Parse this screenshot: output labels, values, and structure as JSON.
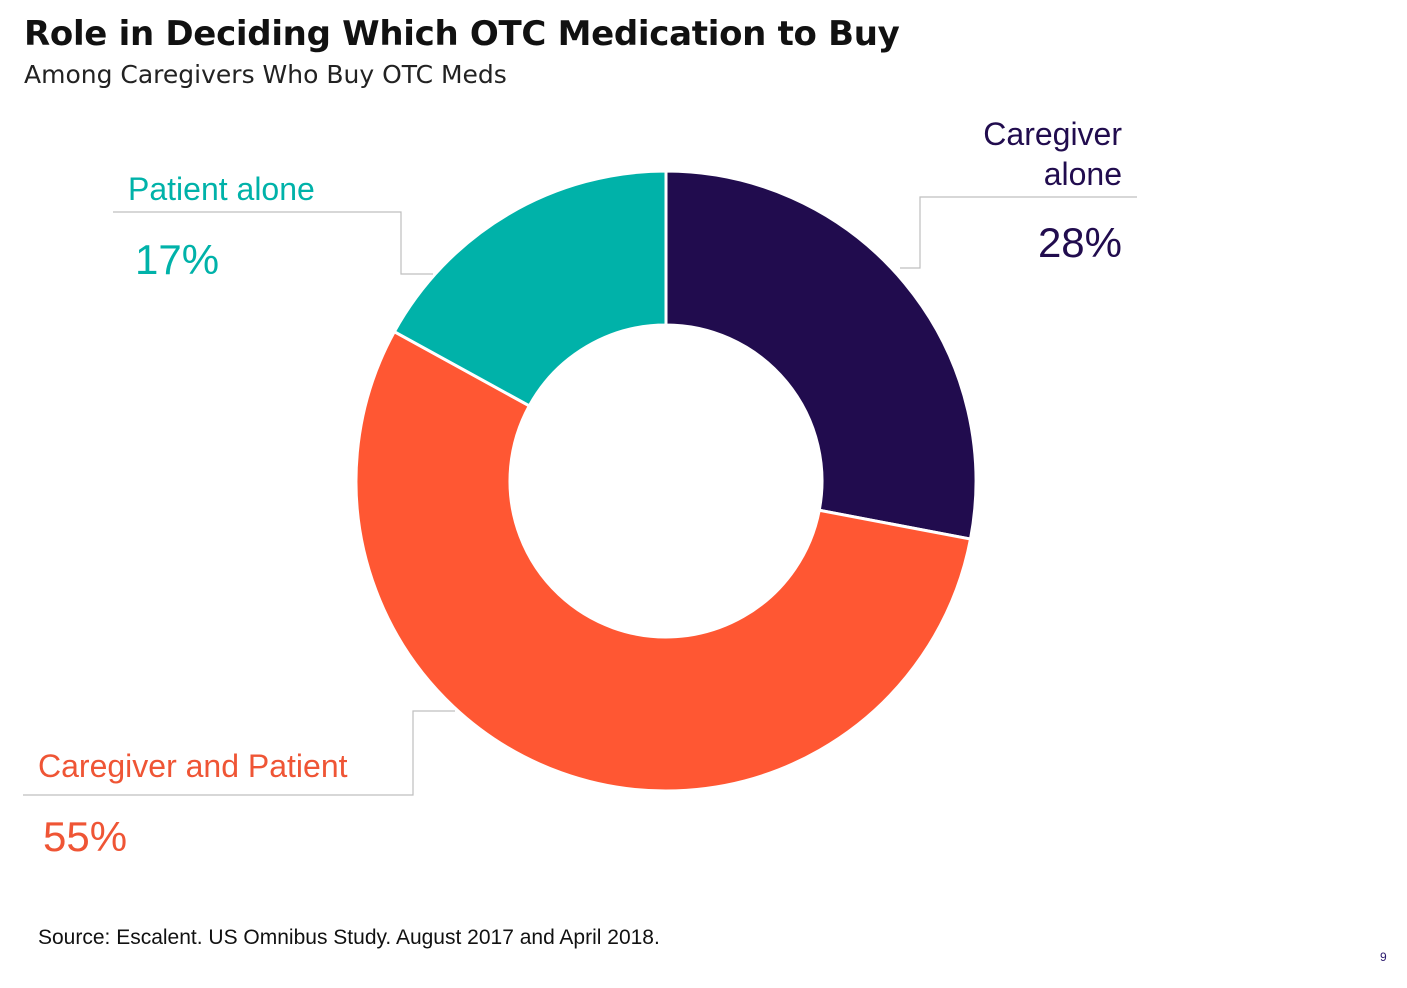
{
  "title": "Role in Deciding Which OTC Medication to Buy",
  "subtitle": "Among Caregivers Who Buy OTC Meds",
  "source": "Source: Escalent. US Omnibus Study. August 2017 and April 2018.",
  "page_number": "9",
  "chart_data": {
    "type": "pie",
    "donut": true,
    "title": "Role in Deciding Which OTC Medication to Buy",
    "subtitle": "Among Caregivers Who Buy OTC Meds",
    "legend": "none",
    "slices": [
      {
        "label": "Caregiver alone",
        "label_lines": [
          "Caregiver",
          "alone"
        ],
        "value": 28,
        "value_label": "28%",
        "color": "#210c4e"
      },
      {
        "label": "Caregiver and Patient",
        "label_lines": [
          "Caregiver and Patient"
        ],
        "value": 55,
        "value_label": "55%",
        "color": "#ff5733"
      },
      {
        "label": "Patient alone",
        "label_lines": [
          "Patient alone"
        ],
        "value": 17,
        "value_label": "17%",
        "color": "#00b2a9"
      }
    ]
  }
}
